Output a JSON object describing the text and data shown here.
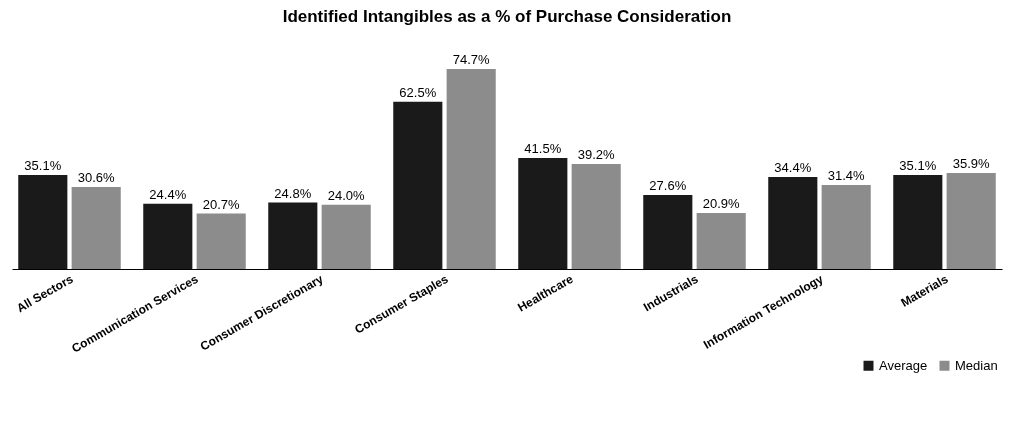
{
  "chart_data": {
    "type": "bar",
    "title": "Identified Intangibles as a % of Purchase Consideration",
    "categories": [
      "All Sectors",
      "Communication Services",
      "Consumer Discretionary",
      "Consumer Staples",
      "Healthcare",
      "Industrials",
      "Information Technology",
      "Materials"
    ],
    "series": [
      {
        "name": "Average",
        "color": "#1a1a1a",
        "values": [
          35.1,
          24.4,
          24.8,
          62.5,
          41.5,
          27.6,
          34.4,
          35.1
        ],
        "value_labels": [
          "35.1%",
          "24.4%",
          "24.8%",
          "62.5%",
          "41.5%",
          "27.6%",
          "34.4%",
          "35.1%"
        ]
      },
      {
        "name": "Median",
        "color": "#8c8c8c",
        "values": [
          30.6,
          20.7,
          24.0,
          74.7,
          39.2,
          20.9,
          31.4,
          35.9
        ],
        "value_labels": [
          "30.6%",
          "20.7%",
          "24.0%",
          "74.7%",
          "39.2%",
          "20.9%",
          "31.4%",
          "35.9%"
        ]
      }
    ],
    "legend": "bottom right",
    "grid": false
  }
}
